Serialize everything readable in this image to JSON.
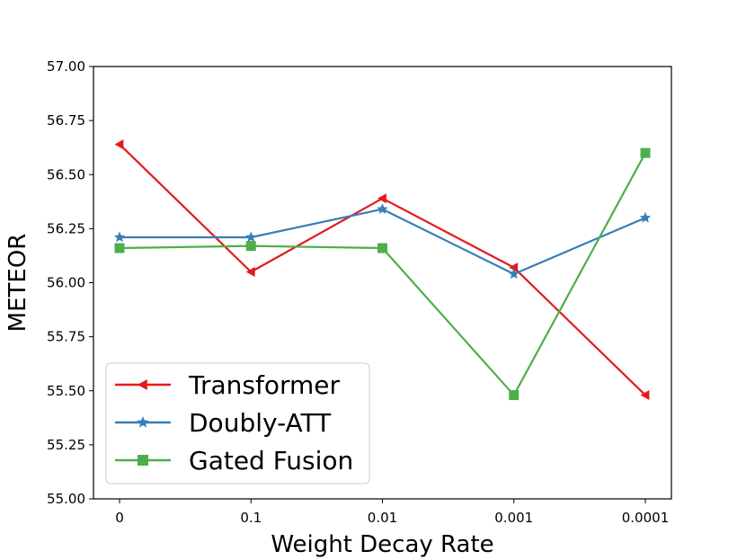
{
  "chart_data": {
    "type": "line",
    "title": "",
    "xlabel": "Weight Decay Rate",
    "ylabel": "METEOR",
    "categories": [
      "0",
      "0.1",
      "0.01",
      "0.001",
      "0.0001"
    ],
    "ylim": [
      55.0,
      57.0
    ],
    "yticks": [
      "55.00",
      "55.25",
      "55.50",
      "55.75",
      "56.00",
      "56.25",
      "56.50",
      "56.75",
      "57.00"
    ],
    "grid": false,
    "legend_position": "lower-left",
    "series": [
      {
        "name": "Transformer",
        "color": "#e41a1c",
        "marker": "triangle-left",
        "values": [
          56.64,
          56.05,
          56.39,
          56.07,
          55.48
        ]
      },
      {
        "name": "Doubly-ATT",
        "color": "#377eb8",
        "marker": "star",
        "values": [
          56.21,
          56.21,
          56.34,
          56.04,
          56.3
        ]
      },
      {
        "name": "Gated Fusion",
        "color": "#4daf4a",
        "marker": "square",
        "values": [
          56.16,
          56.17,
          56.16,
          55.48,
          56.6
        ]
      }
    ]
  }
}
